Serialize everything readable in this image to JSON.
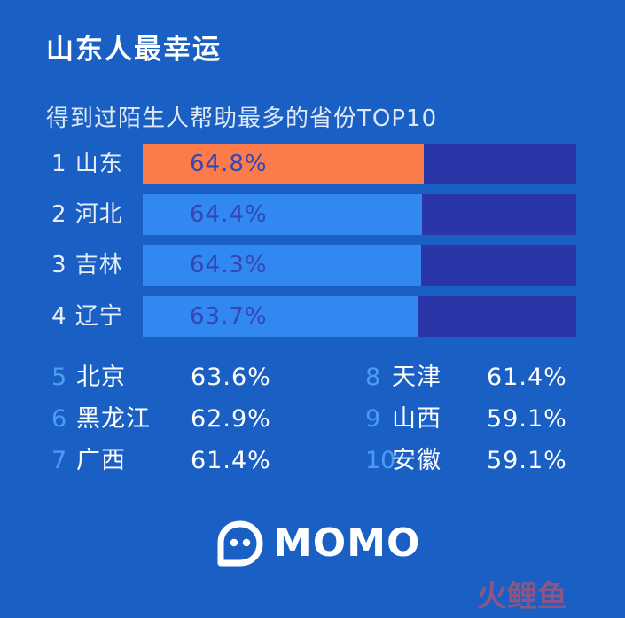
{
  "title": "山东人最幸运",
  "subtitle": "得到过陌生人帮助最多的省份TOP10",
  "colors": {
    "background": "#1a5fc4",
    "bar_track": "#2a35a8",
    "bar_highlight": "#fb7b4b",
    "bar_default": "#3088f0",
    "rank_text": "#4e9bf2"
  },
  "chart_data": {
    "type": "bar",
    "title": "得到过陌生人帮助最多的省份TOP10",
    "unit": "%",
    "xlim": [
      0,
      100
    ],
    "categories": [
      "1 山东",
      "2 河北",
      "3 吉林",
      "4 辽宁",
      "5 北京",
      "6 黑龙江",
      "7 广西",
      "8 天津",
      "9 山西",
      "10安徽"
    ],
    "values": [
      64.8,
      64.4,
      64.3,
      63.7,
      63.6,
      62.9,
      61.4,
      61.4,
      59.1,
      59.1
    ],
    "bars": [
      {
        "label": "1 山东",
        "value": 64.8,
        "display": "64.8%",
        "color": "#fb7b4b"
      },
      {
        "label": "2 河北",
        "value": 64.4,
        "display": "64.4%",
        "color": "#3088f0"
      },
      {
        "label": "3 吉林",
        "value": 64.3,
        "display": "64.3%",
        "color": "#3088f0"
      },
      {
        "label": "4 辽宁",
        "value": 63.7,
        "display": "63.7%",
        "color": "#3088f0"
      }
    ],
    "rest": [
      {
        "rank": "5",
        "name": "北京",
        "display": "63.6%"
      },
      {
        "rank": "6",
        "name": "黑龙江",
        "display": "62.9%"
      },
      {
        "rank": "7",
        "name": "广西",
        "display": "61.4%"
      },
      {
        "rank": "8",
        "name": "天津",
        "display": "61.4%"
      },
      {
        "rank": "9",
        "name": "山西",
        "display": "59.1%"
      },
      {
        "rank": "10",
        "name": "安徽",
        "display": "59.1%"
      }
    ]
  },
  "logo": {
    "text": "MOMO",
    "icon": "momo-logo-icon"
  },
  "watermark": {
    "text": "火鲤鱼"
  }
}
